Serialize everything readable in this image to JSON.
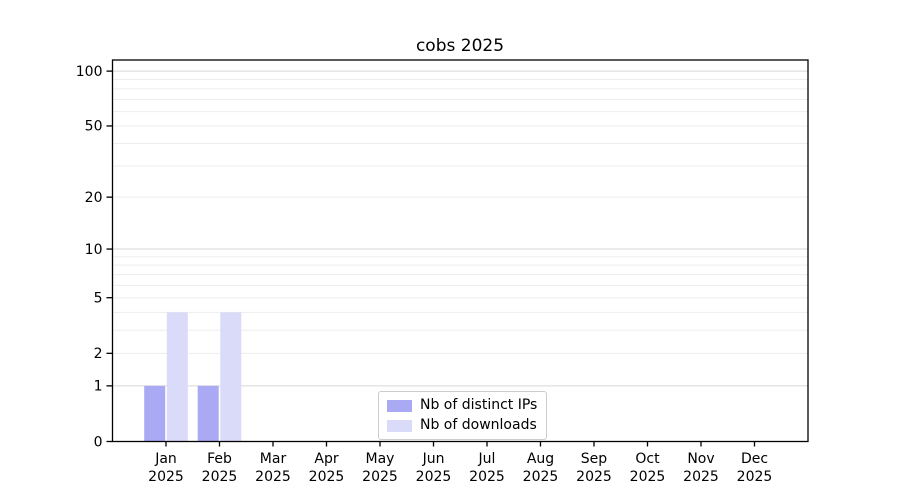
{
  "title": "cobs 2025",
  "chart_data": {
    "type": "bar",
    "title": "cobs 2025",
    "categories": [
      "Jan",
      "Feb",
      "Mar",
      "Apr",
      "May",
      "Jun",
      "Jul",
      "Aug",
      "Sep",
      "Oct",
      "Nov",
      "Dec"
    ],
    "x_tick_year": "2025",
    "series": [
      {
        "name": "Nb of distinct IPs",
        "color": "#a9a9f4",
        "values": [
          1,
          1,
          0,
          0,
          0,
          0,
          0,
          0,
          0,
          0,
          0,
          0
        ]
      },
      {
        "name": "Nb of downloads",
        "color": "#dadbf9",
        "values": [
          4,
          4,
          0,
          0,
          0,
          0,
          0,
          0,
          0,
          0,
          0,
          0
        ]
      }
    ],
    "xlabel": "",
    "ylabel": "",
    "yscale": "log1p",
    "ylim": [
      0,
      115
    ],
    "yticks": [
      0,
      1,
      2,
      5,
      10,
      20,
      50,
      100
    ],
    "grid": {
      "major_lines": [
        1,
        10,
        100
      ],
      "minor_lines": [
        2,
        3,
        4,
        5,
        6,
        7,
        8,
        9,
        20,
        30,
        40,
        50,
        60,
        70,
        80,
        90
      ]
    },
    "legend_position": "lower center",
    "colors": {
      "spine": "#000000",
      "major_grid": "#d7d7d7",
      "minor_grid": "#ededed",
      "tick_text": "#000000",
      "background": "#ffffff"
    }
  }
}
